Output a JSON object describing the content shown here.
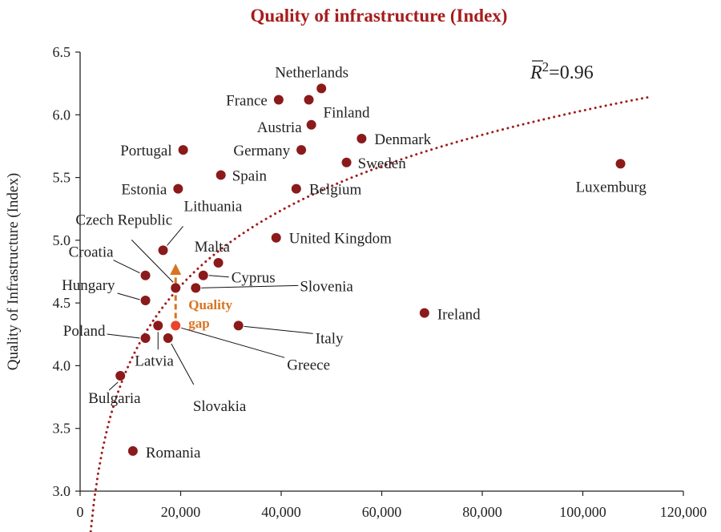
{
  "chart_data": {
    "type": "scatter",
    "title": "Quality of infrastructure (Index)",
    "xlabel": "",
    "ylabel": "Quality of Infrastructure (Index)",
    "xlim": [
      0,
      120000
    ],
    "ylim": [
      3.0,
      6.5
    ],
    "x_ticks": [
      0,
      20000,
      40000,
      60000,
      80000,
      100000,
      120000
    ],
    "x_tick_labels": [
      "0",
      "20,000",
      "40,000",
      "60,000",
      "80,000",
      "100,000",
      "120,000"
    ],
    "y_ticks": [
      3.0,
      3.5,
      4.0,
      4.5,
      5.0,
      5.5,
      6.0,
      6.5
    ],
    "y_tick_labels": [
      "3.0",
      "3.5",
      "4.0",
      "4.5",
      "5.0",
      "5.5",
      "6.0",
      "6.5"
    ],
    "grid": false,
    "points": [
      {
        "label": "Netherlands",
        "x": 48000,
        "y": 6.21
      },
      {
        "label": "France",
        "x": 39500,
        "y": 6.12
      },
      {
        "label": "Finland",
        "x": 45500,
        "y": 6.12
      },
      {
        "label": "Austria",
        "x": 46000,
        "y": 5.92
      },
      {
        "label": "Denmark",
        "x": 56000,
        "y": 5.81
      },
      {
        "label": "Portugal",
        "x": 20500,
        "y": 5.72
      },
      {
        "label": "Germany",
        "x": 44000,
        "y": 5.72
      },
      {
        "label": "Sweden",
        "x": 53000,
        "y": 5.62
      },
      {
        "label": "Luxemburg",
        "x": 107500,
        "y": 5.61
      },
      {
        "label": "Spain",
        "x": 28000,
        "y": 5.52
      },
      {
        "label": "Estonia",
        "x": 19500,
        "y": 5.41
      },
      {
        "label": "Belgium",
        "x": 43000,
        "y": 5.41
      },
      {
        "label": "United Kingdom",
        "x": 39000,
        "y": 5.02
      },
      {
        "label": "Lithuania",
        "x": 16500,
        "y": 4.92
      },
      {
        "label": "Malta",
        "x": 27500,
        "y": 4.82
      },
      {
        "label": "Croatia",
        "x": 13000,
        "y": 4.72
      },
      {
        "label": "Cyprus",
        "x": 24500,
        "y": 4.72
      },
      {
        "label": "Czech Republic",
        "x": 19000,
        "y": 4.62
      },
      {
        "label": "Slovenia",
        "x": 23000,
        "y": 4.62
      },
      {
        "label": "Hungary",
        "x": 13000,
        "y": 4.52
      },
      {
        "label": "Ireland",
        "x": 68500,
        "y": 4.42
      },
      {
        "label": "Latvia",
        "x": 15500,
        "y": 4.32
      },
      {
        "label": "Italy",
        "x": 31500,
        "y": 4.32
      },
      {
        "label": "Poland",
        "x": 13000,
        "y": 4.22
      },
      {
        "label": "Slovakia",
        "x": 17500,
        "y": 4.22
      },
      {
        "label": "Bulgaria",
        "x": 8000,
        "y": 3.92
      },
      {
        "label": "Romania",
        "x": 10500,
        "y": 3.32
      }
    ],
    "highlight_point": {
      "label": "Greece",
      "x": 19000,
      "y": 4.32
    },
    "trendline": {
      "type": "logarithmic",
      "a": 0.8684,
      "b": -3.964,
      "x_range": [
        2000,
        113000
      ]
    },
    "r_squared_label": "=0.96",
    "annotation": {
      "label_line1": "Quality",
      "label_line2": "gap",
      "from": {
        "x": 19000,
        "y": 4.32
      },
      "to": {
        "x": 19000,
        "y": 4.82
      }
    },
    "colors": {
      "points": "#8b1a1a",
      "title": "#a61c1c",
      "trendline": "#a01c1c",
      "highlight": "#e8452c",
      "annotation": "#d9731f",
      "axis": "#222222"
    }
  }
}
